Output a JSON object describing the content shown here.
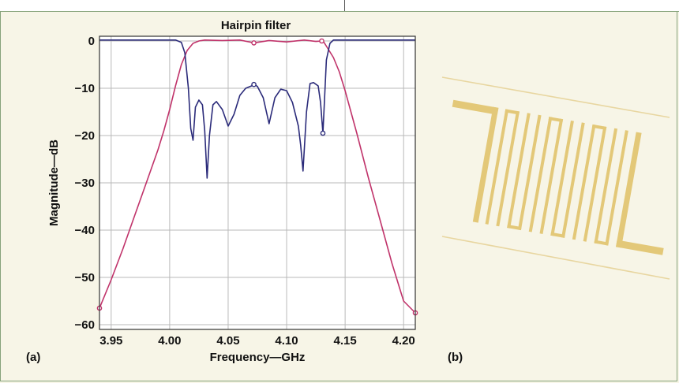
{
  "chart_data": {
    "type": "line",
    "title": "Hairpin filter",
    "xlabel": "Frequency—GHz",
    "ylabel": "Magnitude—dB",
    "xlim": [
      3.94,
      4.21
    ],
    "ylim": [
      -61,
      1
    ],
    "xticks": [
      3.95,
      4.0,
      4.05,
      4.1,
      4.15,
      4.2
    ],
    "xtick_labels": [
      "3.95",
      "4.00",
      "4.05",
      "4.10",
      "4.15",
      "4.20"
    ],
    "yticks": [
      0,
      -10,
      -20,
      -30,
      -40,
      -50,
      -60
    ],
    "ytick_labels": [
      "0",
      "−10",
      "−20",
      "−30",
      "−40",
      "−50",
      "−60"
    ],
    "grid": true,
    "series": [
      {
        "color": "#c0336a",
        "x": [
          3.94,
          3.95,
          3.96,
          3.97,
          3.98,
          3.99,
          3.995,
          4.0,
          4.005,
          4.01,
          4.015,
          4.02,
          4.025,
          4.03,
          4.045,
          4.06,
          4.072,
          4.085,
          4.1,
          4.115,
          4.125,
          4.13,
          4.132,
          4.135,
          4.14,
          4.145,
          4.15,
          4.155,
          4.16,
          4.17,
          4.18,
          4.19,
          4.2,
          4.21
        ],
        "y": [
          -56.5,
          -50.5,
          -44,
          -37,
          -30,
          -23,
          -19,
          -14.5,
          -9.5,
          -5,
          -2,
          -0.5,
          0,
          0.2,
          0.1,
          0.2,
          -0.4,
          0.1,
          -0.2,
          0.2,
          -0.1,
          0,
          -0.3,
          -1.5,
          -3.5,
          -6.5,
          -10.5,
          -15,
          -19.5,
          -29,
          -38,
          -47,
          -55,
          -57.5
        ],
        "markers": [
          [
            3.94,
            -56.5
          ],
          [
            4.072,
            -0.4
          ],
          [
            4.13,
            0
          ],
          [
            4.21,
            -57.5
          ]
        ]
      },
      {
        "color": "#2b2b7a",
        "x": [
          3.94,
          4.005,
          4.01,
          4.013,
          4.016,
          4.018,
          4.02,
          4.022,
          4.025,
          4.028,
          4.03,
          4.032,
          4.034,
          4.037,
          4.04,
          4.045,
          4.05,
          4.055,
          4.06,
          4.065,
          4.07,
          4.072,
          4.075,
          4.08,
          4.085,
          4.09,
          4.095,
          4.1,
          4.105,
          4.11,
          4.112,
          4.114,
          4.117,
          4.12,
          4.123,
          4.127,
          4.129,
          4.131,
          4.134,
          4.137,
          4.14,
          4.15,
          4.21
        ],
        "y": [
          0.2,
          0.2,
          -0.3,
          -2.5,
          -10,
          -18.5,
          -21,
          -14,
          -12.5,
          -13.5,
          -19,
          -29,
          -20,
          -13.5,
          -12.8,
          -14.5,
          -18,
          -15.5,
          -11.5,
          -10,
          -9.5,
          -9.2,
          -9.6,
          -12,
          -17.5,
          -12,
          -10.2,
          -10.5,
          -13,
          -18,
          -22,
          -27.5,
          -15,
          -9,
          -8.8,
          -9.5,
          -13,
          -19.5,
          -4,
          -0.5,
          0.2,
          0.2,
          0.2
        ],
        "markers": [
          [
            4.072,
            -9.2
          ],
          [
            4.131,
            -19.5
          ]
        ]
      }
    ],
    "panel_labels": [
      "(a)",
      "(b)"
    ]
  },
  "illustration": {
    "name": "hairpin-filter-layout",
    "color": "#e3c878",
    "line_color": "#e8d6a0"
  }
}
